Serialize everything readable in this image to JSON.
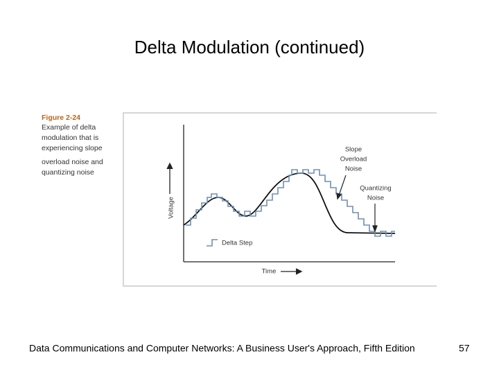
{
  "title": "Delta Modulation (continued)",
  "figure": {
    "label": "Figure 2-24",
    "caption": [
      "Example of delta",
      "modulation that is",
      "experiencing slope",
      "overload noise and",
      "quantizing noise"
    ],
    "y_axis_label": "Voltage",
    "x_axis_label": "Time",
    "legend": "Delta Step",
    "slope_note": [
      "Slope",
      "Overload",
      "Noise"
    ],
    "quantizing_note": [
      "Quantizing",
      "Noise"
    ]
  },
  "footer": {
    "text": "Data Communications and Computer Networks: A Business User's Approach, Fifth Edition",
    "page": "57"
  }
}
